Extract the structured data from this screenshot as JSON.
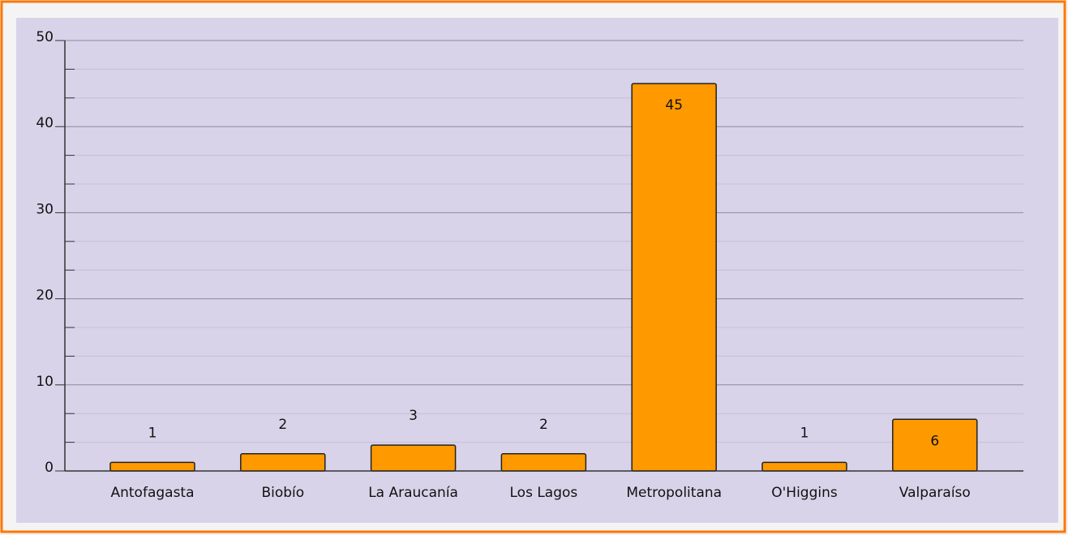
{
  "chart_data": {
    "type": "bar",
    "categories": [
      "Antofagasta",
      "Biobío",
      "La Araucanía",
      "Los Lagos",
      "Metropolitana",
      "O'Higgins",
      "Valparaíso"
    ],
    "values": [
      1,
      2,
      3,
      2,
      45,
      1,
      6
    ],
    "color": "#ff9900",
    "ylim": [
      0,
      50
    ],
    "yticks": [
      0,
      10,
      20,
      30,
      40,
      50
    ],
    "minor_ticks_per_major": 3,
    "grid": true
  }
}
